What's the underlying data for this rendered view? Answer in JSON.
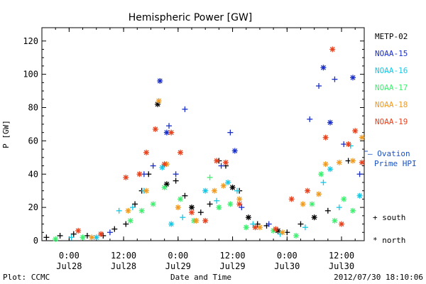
{
  "chart_data": {
    "type": "scatter",
    "title": "Hemispheric Power [GW]",
    "ylabel": "P [GW]",
    "xlabel": "Date and Time",
    "ylim": [
      0,
      128
    ],
    "xlim": [
      "2012-07-27T18:00",
      "2012-07-30T17:00"
    ],
    "grid": false,
    "legend_position": "right",
    "y_ticks": [
      "0",
      "20",
      "40",
      "60",
      "80",
      "100",
      "120"
    ],
    "x_ticks": [
      {
        "time": "2012-07-28T00:00",
        "top": "0:00",
        "bottom": "Jul28"
      },
      {
        "time": "2012-07-28T12:00",
        "top": "12:00",
        "bottom": "Jul28"
      },
      {
        "time": "2012-07-29T00:00",
        "top": "0:00",
        "bottom": "Jul29"
      },
      {
        "time": "2012-07-29T12:00",
        "top": "12:00",
        "bottom": "Jul29"
      },
      {
        "time": "2012-07-30T00:00",
        "top": "0:00",
        "bottom": "Jul30"
      },
      {
        "time": "2012-07-30T12:00",
        "top": "12:00",
        "bottom": "Jul30"
      }
    ],
    "markers": {
      "south": "+ south",
      "north": "* north"
    },
    "model_label_line1": "— Ovation",
    "model_label_line2": "Prime HPI",
    "series": [
      {
        "name": "METP-02",
        "color": "#000000",
        "points": [
          [
            "2012-07-27T19:00",
            2,
            "+"
          ],
          [
            "2012-07-27T22:00",
            3,
            "+"
          ],
          [
            "2012-07-28T01:00",
            4,
            "+"
          ],
          [
            "2012-07-28T04:00",
            3,
            "+"
          ],
          [
            "2012-07-28T07:30",
            3,
            "+"
          ],
          [
            "2012-07-28T10:00",
            7,
            "+"
          ],
          [
            "2012-07-28T12:30",
            10,
            "+"
          ],
          [
            "2012-07-28T14:30",
            22,
            "+"
          ],
          [
            "2012-07-28T16:00",
            30,
            "+"
          ],
          [
            "2012-07-28T17:30",
            40,
            "+"
          ],
          [
            "2012-07-28T19:30",
            82,
            "*"
          ],
          [
            "2012-07-28T21:30",
            34,
            "*"
          ],
          [
            "2012-07-28T23:30",
            36,
            "+"
          ],
          [
            "2012-07-29T01:30",
            27,
            "+"
          ],
          [
            "2012-07-29T03:00",
            20,
            "*"
          ],
          [
            "2012-07-29T05:00",
            17,
            "+"
          ],
          [
            "2012-07-29T07:00",
            22,
            "+"
          ],
          [
            "2012-07-29T09:00",
            48,
            "+"
          ],
          [
            "2012-07-29T10:30",
            45,
            "+"
          ],
          [
            "2012-07-29T12:00",
            32,
            "*"
          ],
          [
            "2012-07-29T13:30",
            30,
            "+"
          ],
          [
            "2012-07-29T15:30",
            14,
            "*"
          ],
          [
            "2012-07-29T17:30",
            10,
            "+"
          ],
          [
            "2012-07-29T19:30",
            9,
            "+"
          ],
          [
            "2012-07-29T22:00",
            6,
            "*"
          ],
          [
            "2012-07-30T00:00",
            5,
            "+"
          ],
          [
            "2012-07-30T03:00",
            10,
            "+"
          ],
          [
            "2012-07-30T06:00",
            14,
            "*"
          ],
          [
            "2012-07-30T09:00",
            18,
            "+"
          ],
          [
            "2012-07-30T13:30",
            48,
            "+"
          ]
        ]
      },
      {
        "name": "NOAA-15",
        "color": "#1a2fc8",
        "points": [
          [
            "2012-07-28T09:00",
            5,
            "+"
          ],
          [
            "2012-07-28T16:30",
            40,
            "+"
          ],
          [
            "2012-07-28T18:30",
            45,
            "+"
          ],
          [
            "2012-07-28T20:00",
            96,
            "*"
          ],
          [
            "2012-07-28T21:30",
            65,
            "*"
          ],
          [
            "2012-07-28T22:00",
            69,
            "+"
          ],
          [
            "2012-07-28T23:30",
            40,
            "+"
          ],
          [
            "2012-07-29T01:30",
            79,
            "+"
          ],
          [
            "2012-07-29T09:30",
            45,
            "+"
          ],
          [
            "2012-07-29T11:30",
            65,
            "+"
          ],
          [
            "2012-07-29T12:30",
            54,
            "*"
          ],
          [
            "2012-07-29T14:00",
            20,
            "+"
          ],
          [
            "2012-07-29T20:00",
            10,
            "+"
          ],
          [
            "2012-07-30T05:00",
            73,
            "+"
          ],
          [
            "2012-07-30T07:00",
            93,
            "+"
          ],
          [
            "2012-07-30T08:00",
            104,
            "*"
          ],
          [
            "2012-07-30T09:30",
            71,
            "*"
          ],
          [
            "2012-07-30T10:30",
            97,
            "+"
          ],
          [
            "2012-07-30T12:30",
            58,
            "+"
          ],
          [
            "2012-07-30T14:30",
            98,
            "*"
          ],
          [
            "2012-07-30T16:00",
            40,
            "+"
          ]
        ]
      },
      {
        "name": "NOAA-16",
        "color": "#14c8e6",
        "points": [
          [
            "2012-07-28T00:30",
            2,
            "+"
          ],
          [
            "2012-07-28T06:00",
            2,
            "*"
          ],
          [
            "2012-07-28T11:00",
            18,
            "+"
          ],
          [
            "2012-07-28T14:00",
            20,
            "+"
          ],
          [
            "2012-07-28T16:30",
            30,
            "+"
          ],
          [
            "2012-07-28T20:30",
            44,
            "*"
          ],
          [
            "2012-07-28T22:30",
            10,
            "*"
          ],
          [
            "2012-07-29T01:00",
            14,
            "+"
          ],
          [
            "2012-07-29T06:00",
            30,
            "*"
          ],
          [
            "2012-07-29T08:30",
            24,
            "+"
          ],
          [
            "2012-07-29T11:00",
            35,
            "*"
          ],
          [
            "2012-07-29T13:00",
            30,
            "+"
          ],
          [
            "2012-07-29T16:30",
            10,
            "+"
          ],
          [
            "2012-07-29T22:30",
            4,
            "+"
          ],
          [
            "2012-07-30T04:00",
            8,
            "+"
          ],
          [
            "2012-07-30T08:00",
            35,
            "+"
          ],
          [
            "2012-07-30T09:30",
            43,
            "*"
          ],
          [
            "2012-07-30T11:30",
            20,
            "+"
          ],
          [
            "2012-07-30T14:00",
            57,
            "+"
          ],
          [
            "2012-07-30T16:00",
            27,
            "*"
          ]
        ]
      },
      {
        "name": "NOAA-17",
        "color": "#3ff070",
        "points": [
          [
            "2012-07-27T21:00",
            1,
            "*"
          ],
          [
            "2012-07-28T03:00",
            2,
            "*"
          ],
          [
            "2012-07-28T13:30",
            12,
            "*"
          ],
          [
            "2012-07-28T16:00",
            18,
            "*"
          ],
          [
            "2012-07-28T18:30",
            22,
            "*"
          ],
          [
            "2012-07-28T21:00",
            32,
            "*"
          ],
          [
            "2012-07-29T00:30",
            25,
            "*"
          ],
          [
            "2012-07-29T03:30",
            12,
            "*"
          ],
          [
            "2012-07-29T07:00",
            38,
            "+"
          ],
          [
            "2012-07-29T09:00",
            20,
            "*"
          ],
          [
            "2012-07-29T11:30",
            22,
            "*"
          ],
          [
            "2012-07-29T15:00",
            8,
            "*"
          ],
          [
            "2012-07-29T21:00",
            6,
            "*"
          ],
          [
            "2012-07-30T02:00",
            3,
            "*"
          ],
          [
            "2012-07-30T05:30",
            22,
            "*"
          ],
          [
            "2012-07-30T07:30",
            40,
            "*"
          ],
          [
            "2012-07-30T10:30",
            12,
            "*"
          ],
          [
            "2012-07-30T12:30",
            25,
            "*"
          ],
          [
            "2012-07-30T14:30",
            18,
            "*"
          ]
        ]
      },
      {
        "name": "NOAA-18",
        "color": "#f09a20",
        "points": [
          [
            "2012-07-28T05:00",
            2,
            "*"
          ],
          [
            "2012-07-28T13:00",
            18,
            "*"
          ],
          [
            "2012-07-28T17:00",
            30,
            "*"
          ],
          [
            "2012-07-28T19:45",
            84,
            "*"
          ],
          [
            "2012-07-28T21:30",
            46,
            "*"
          ],
          [
            "2012-07-29T00:00",
            20,
            "*"
          ],
          [
            "2012-07-29T04:00",
            12,
            "*"
          ],
          [
            "2012-07-29T08:00",
            30,
            "*"
          ],
          [
            "2012-07-29T10:00",
            33,
            "*"
          ],
          [
            "2012-07-29T13:30",
            25,
            "*"
          ],
          [
            "2012-07-29T18:00",
            8,
            "*"
          ],
          [
            "2012-07-29T23:00",
            5,
            "*"
          ],
          [
            "2012-07-30T03:30",
            22,
            "*"
          ],
          [
            "2012-07-30T07:00",
            28,
            "*"
          ],
          [
            "2012-07-30T08:30",
            46,
            "*"
          ],
          [
            "2012-07-30T11:30",
            47,
            "*"
          ],
          [
            "2012-07-30T14:30",
            48,
            "*"
          ],
          [
            "2012-07-30T16:30",
            62,
            "*"
          ]
        ]
      },
      {
        "name": "NOAA-19",
        "color": "#e8401c",
        "points": [
          [
            "2012-07-28T02:00",
            6,
            "*"
          ],
          [
            "2012-07-28T07:00",
            4,
            "*"
          ],
          [
            "2012-07-28T12:30",
            38,
            "*"
          ],
          [
            "2012-07-28T15:30",
            40,
            "*"
          ],
          [
            "2012-07-28T17:00",
            53,
            "*"
          ],
          [
            "2012-07-28T19:00",
            67,
            "*"
          ],
          [
            "2012-07-28T21:00",
            46,
            "*"
          ],
          [
            "2012-07-28T22:30",
            65,
            "*"
          ],
          [
            "2012-07-29T00:30",
            53,
            "*"
          ],
          [
            "2012-07-29T03:00",
            17,
            "*"
          ],
          [
            "2012-07-29T06:00",
            12,
            "*"
          ],
          [
            "2012-07-29T08:30",
            48,
            "*"
          ],
          [
            "2012-07-29T10:30",
            47,
            "*"
          ],
          [
            "2012-07-29T13:30",
            22,
            "*"
          ],
          [
            "2012-07-29T17:00",
            8,
            "*"
          ],
          [
            "2012-07-29T21:30",
            7,
            "*"
          ],
          [
            "2012-07-30T01:00",
            25,
            "*"
          ],
          [
            "2012-07-30T04:30",
            30,
            "*"
          ],
          [
            "2012-07-30T08:30",
            62,
            "*"
          ],
          [
            "2012-07-30T10:00",
            115,
            "*"
          ],
          [
            "2012-07-30T12:00",
            10,
            "*"
          ],
          [
            "2012-07-30T13:30",
            58,
            "*"
          ],
          [
            "2012-07-30T15:00",
            66,
            "*"
          ],
          [
            "2012-07-30T16:30",
            47,
            "*"
          ]
        ]
      }
    ]
  },
  "footer": {
    "plot_credit": "Plot: CCMC",
    "timestamp": "2012/07/30 18:10:06"
  }
}
